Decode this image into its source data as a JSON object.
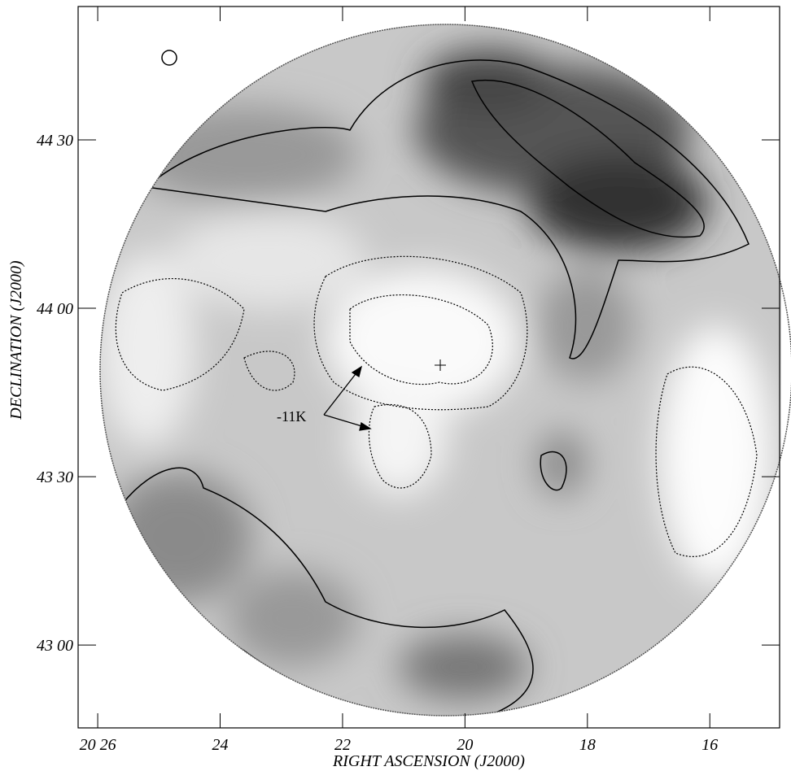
{
  "chart_data": {
    "type": "contour",
    "xlabel": "RIGHT ASCENSION (J2000)",
    "ylabel": "DECLINATION (J2000)",
    "annotation": "-11K",
    "xlim": [
      26.32,
      14.86
    ],
    "ylim": [
      42.754,
      44.896
    ],
    "xticks": [
      {
        "value": 26,
        "label": "20 26"
      },
      {
        "value": 24,
        "label": "24"
      },
      {
        "value": 22,
        "label": "22"
      },
      {
        "value": 20,
        "label": "20"
      },
      {
        "value": 18,
        "label": "18"
      },
      {
        "value": 16,
        "label": "16"
      }
    ],
    "yticks": [
      {
        "value": 44.5,
        "label": "44 30"
      },
      {
        "value": 44.0,
        "label": "44 00"
      },
      {
        "value": 43.5,
        "label": "43 30"
      },
      {
        "value": 43.0,
        "label": "43 00"
      }
    ]
  }
}
